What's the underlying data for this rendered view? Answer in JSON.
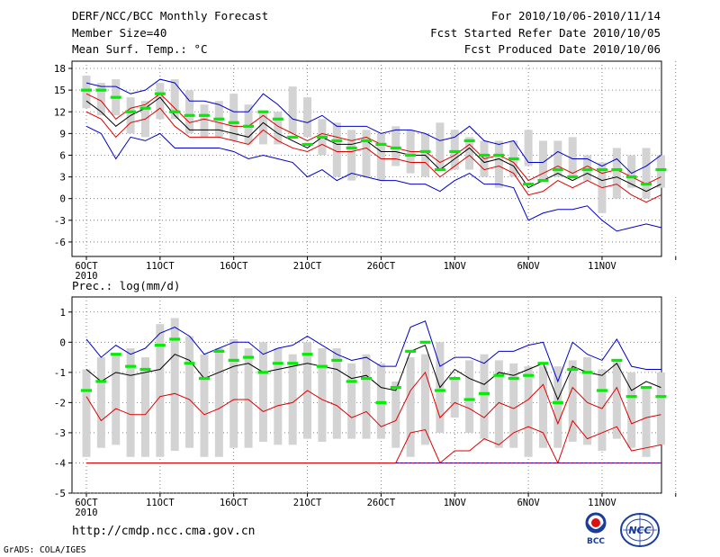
{
  "header": {
    "title": "DERF/NCC/BCC Monthly Forecast",
    "member_size": "Member Size=40",
    "variable": "Mean Surf. Temp.: °C",
    "period": "For 2010/10/06-2010/11/14",
    "fcst_started": "Fcst Started Refer Date 2010/10/05",
    "fcst_produced": "Fcst Produced Date 2010/10/06"
  },
  "footer": {
    "url": "http://cmdp.ncc.cma.gov.cn",
    "grads": "GrADS: COLA/IGES",
    "logo_bcc": "BCC",
    "logo_ncc": "NCC"
  },
  "colors": {
    "box": "#d3d3d3",
    "median": "#00ee00",
    "mean": "#000000",
    "bound_outer": "#0000cc",
    "bound_inner": "#dd0000",
    "grid": "#666666"
  },
  "chart_data": [
    {
      "type": "box_ensemble",
      "title": "Mean Surf. Temp.: °C",
      "xlabel": "",
      "ylabel": "",
      "ylim": [
        -8,
        19
      ],
      "yticks": [
        -6,
        -3,
        0,
        3,
        6,
        9,
        12,
        15,
        18
      ],
      "ytick_labels": [
        "-6",
        "-3",
        "0",
        "3",
        "6",
        "9",
        "12",
        "15",
        "18"
      ],
      "xticks": [
        0,
        5,
        10,
        15,
        20,
        25,
        30,
        35,
        40
      ],
      "xtick_labels": [
        "6OCT",
        "11OCT",
        "16OCT",
        "21OCT",
        "26OCT",
        "1NOV",
        "6NOV",
        "11NOV",
        ""
      ],
      "xtick_sublabel": "2010",
      "days": [
        0,
        1,
        2,
        3,
        4,
        5,
        6,
        7,
        8,
        9,
        10,
        11,
        12,
        13,
        14,
        15,
        16,
        17,
        18,
        19,
        20,
        21,
        22,
        23,
        24,
        25,
        26,
        27,
        28,
        29,
        30,
        31,
        32,
        33,
        34,
        35,
        36,
        37,
        38,
        39
      ],
      "box_low": [
        12.5,
        11.5,
        11.5,
        9,
        8.5,
        11,
        11,
        9,
        8.5,
        8.5,
        8,
        7.5,
        7.5,
        7.5,
        9,
        8.5,
        6,
        3,
        2.5,
        3,
        2.5,
        4.5,
        3.5,
        3,
        4,
        4,
        4,
        3,
        1.5,
        3,
        4.5,
        2.5,
        3,
        3,
        2.5,
        -2,
        0,
        1.5,
        0,
        1.5
      ],
      "box_high": [
        17,
        16,
        16.5,
        14,
        13.5,
        16,
        16.5,
        15,
        13,
        13.5,
        14.5,
        13,
        12,
        12,
        15.5,
        14,
        11,
        10.5,
        9.5,
        9.5,
        9,
        10,
        9.5,
        9,
        10.5,
        9.5,
        8.5,
        8,
        8,
        8,
        9.5,
        8,
        8,
        8.5,
        6,
        5,
        7,
        6,
        7,
        6
      ],
      "median": [
        15,
        15,
        14,
        12,
        12.5,
        14.5,
        12,
        11.5,
        11.5,
        11,
        10.5,
        10,
        12,
        11,
        8.5,
        7.5,
        8.5,
        8,
        7,
        8,
        7.5,
        7,
        6,
        6.5,
        4,
        6.5,
        8,
        6,
        6,
        5.5,
        2,
        2.5,
        4,
        3,
        4,
        4,
        4,
        3,
        2,
        4
      ],
      "mean": [
        13.5,
        12,
        10,
        11.5,
        12.5,
        14,
        11.5,
        9.5,
        9.5,
        9.5,
        9,
        8.5,
        10.5,
        9,
        8,
        7,
        8.5,
        7.5,
        7.5,
        8,
        6.5,
        6.5,
        6,
        6,
        4,
        5.5,
        7,
        5,
        5.5,
        4.5,
        1.5,
        2.5,
        3.5,
        2.5,
        3.5,
        2.5,
        3,
        2,
        1,
        2
      ],
      "max": [
        16,
        15.5,
        15.5,
        14.5,
        15,
        16.5,
        16,
        13.5,
        13.5,
        13,
        12,
        12,
        14.5,
        13,
        11,
        10.5,
        11.5,
        10,
        10,
        10,
        9,
        9.5,
        9.5,
        9,
        8,
        8.5,
        10,
        8,
        7.5,
        8,
        5,
        5,
        6.5,
        5.5,
        5.5,
        4.5,
        5.5,
        3.5,
        4.5,
        6
      ],
      "inner_high": [
        14.5,
        13.5,
        11,
        12.5,
        13,
        14.5,
        12.5,
        10.5,
        11,
        10.5,
        10,
        10,
        11.5,
        10,
        9,
        8,
        9,
        8.5,
        8,
        8.5,
        7.5,
        7,
        6.5,
        6.5,
        5,
        6,
        7.5,
        5.5,
        6,
        5,
        2.5,
        3.5,
        4.5,
        3.5,
        4.5,
        3.5,
        4,
        3,
        2,
        3
      ],
      "inner_low": [
        12,
        11,
        8.5,
        10.5,
        11,
        12.5,
        10,
        8.5,
        8.5,
        8.5,
        8,
        7.5,
        9.5,
        8,
        7,
        6.5,
        7.5,
        6.5,
        6.5,
        7,
        5.5,
        5.5,
        5,
        5,
        3,
        4.5,
        6,
        4,
        4.5,
        3.5,
        0.5,
        1,
        2.5,
        1.5,
        2.5,
        1.5,
        2,
        0.5,
        -0.5,
        0.5
      ],
      "min": [
        10,
        9,
        5.5,
        8.5,
        8,
        9,
        7,
        7,
        7,
        7,
        6.5,
        5.5,
        6,
        5.5,
        5,
        3,
        4,
        2.5,
        3.5,
        3,
        2.5,
        2.5,
        2,
        2,
        1,
        2.5,
        3.5,
        2,
        2,
        1.5,
        -3,
        -2,
        -1.5,
        -1.5,
        -1,
        -3,
        -4.5,
        -4,
        -3.5,
        -4
      ]
    },
    {
      "type": "box_ensemble",
      "title": "Prec.: log(mm/d)",
      "xlabel": "",
      "ylabel": "",
      "ylim": [
        -5,
        1.5
      ],
      "yticks": [
        -5,
        -4,
        -3,
        -2,
        -1,
        0,
        1
      ],
      "ytick_labels": [
        "-5",
        "-4",
        "-3",
        "-2",
        "-1",
        "0",
        "1"
      ],
      "xticks": [
        0,
        5,
        10,
        15,
        20,
        25,
        30,
        35,
        40
      ],
      "xtick_labels": [
        "6OCT",
        "11OCT",
        "16OCT",
        "21OCT",
        "26OCT",
        "1NOV",
        "6NOV",
        "11NOV",
        ""
      ],
      "xtick_sublabel": "2010",
      "days": [
        0,
        1,
        2,
        3,
        4,
        5,
        6,
        7,
        8,
        9,
        10,
        11,
        12,
        13,
        14,
        15,
        16,
        17,
        18,
        19,
        20,
        21,
        22,
        23,
        24,
        25,
        26,
        27,
        28,
        29,
        30,
        31,
        32,
        33,
        34,
        35,
        36,
        37,
        38,
        39
      ],
      "box_low": [
        -3.8,
        -3.5,
        -3.4,
        -3.8,
        -3.8,
        -3.8,
        -3.6,
        -3.5,
        -3.8,
        -3.8,
        -3.5,
        -3.5,
        -3.3,
        -3.4,
        -3.4,
        -3.2,
        -3.3,
        -3.2,
        -3.2,
        -3.2,
        -3.2,
        -3.5,
        -3.8,
        -3.4,
        -3.0,
        -2.5,
        -3.0,
        -3.2,
        -3.5,
        -3.5,
        -3.8,
        -3.5,
        -3.5,
        -3.3,
        -3.4,
        -3.6,
        -3.2,
        -3.5,
        -3.8,
        -3.4
      ],
      "box_high": [
        -0.9,
        -0.5,
        -0.4,
        -0.2,
        -0.5,
        0.6,
        0.8,
        0.2,
        -0.4,
        -0.2,
        0.1,
        -0.2,
        0.0,
        -0.2,
        -0.4,
        0.0,
        -0.2,
        -0.2,
        -0.7,
        -0.4,
        -0.7,
        -1.3,
        -0.5,
        -0.4,
        0.0,
        -1.2,
        -0.6,
        -0.4,
        -0.6,
        -0.7,
        -0.8,
        -0.8,
        -0.8,
        -0.6,
        -0.5,
        -0.9,
        -0.6,
        -1.0,
        -1.5,
        -1.0
      ],
      "median": [
        -1.6,
        -1.3,
        -0.4,
        -0.8,
        -0.9,
        -0.1,
        0.1,
        -0.7,
        -1.2,
        -0.3,
        -0.6,
        -0.5,
        -1.0,
        -0.7,
        -0.7,
        -0.4,
        -0.8,
        -0.6,
        -1.3,
        -1.2,
        -2.0,
        -1.5,
        -0.3,
        0.0,
        -1.6,
        -1.2,
        -1.9,
        -1.7,
        -1.1,
        -1.2,
        -1.1,
        -0.7,
        -2.0,
        -0.9,
        -1.0,
        -1.6,
        -0.6,
        -1.8,
        -1.5,
        -1.8
      ],
      "mean": [
        -0.9,
        -1.3,
        -1.0,
        -1.1,
        -1.0,
        -0.9,
        -0.4,
        -0.6,
        -1.2,
        -1.0,
        -0.8,
        -0.7,
        -1.0,
        -0.9,
        -0.8,
        -0.7,
        -0.8,
        -0.9,
        -1.2,
        -1.1,
        -1.5,
        -1.6,
        -0.3,
        -0.1,
        -1.5,
        -0.9,
        -1.2,
        -1.4,
        -1.0,
        -1.1,
        -0.9,
        -0.7,
        -1.9,
        -0.8,
        -1.0,
        -1.1,
        -0.7,
        -1.6,
        -1.3,
        -1.5
      ],
      "max": [
        0.1,
        -0.5,
        -0.1,
        -0.4,
        -0.2,
        0.3,
        0.5,
        0.2,
        -0.4,
        -0.2,
        0.0,
        0.0,
        -0.4,
        -0.2,
        -0.1,
        0.2,
        -0.1,
        -0.4,
        -0.6,
        -0.5,
        -0.8,
        -0.8,
        0.5,
        0.7,
        -0.8,
        -0.5,
        -0.5,
        -0.7,
        -0.3,
        -0.3,
        -0.1,
        0.0,
        -1.3,
        0.0,
        -0.4,
        -0.6,
        0.1,
        -0.8,
        -0.9,
        -0.9
      ],
      "inner_high": [
        -1.8,
        -2.6,
        -2.2,
        -2.4,
        -2.4,
        -1.8,
        -1.7,
        -1.9,
        -2.4,
        -2.2,
        -1.9,
        -1.9,
        -2.3,
        -2.1,
        -2.0,
        -1.6,
        -1.9,
        -2.1,
        -2.5,
        -2.3,
        -2.8,
        -2.6,
        -1.6,
        -1.0,
        -2.5,
        -2.0,
        -2.2,
        -2.5,
        -2.0,
        -2.2,
        -1.9,
        -1.4,
        -2.7,
        -1.5,
        -2.0,
        -2.2,
        -1.5,
        -2.7,
        -2.5,
        -2.4
      ],
      "inner_low": [
        -4,
        -4,
        -4,
        -4,
        -4,
        -4,
        -4,
        -4,
        -4,
        -4,
        -4,
        -4,
        -4,
        -4,
        -4,
        -4,
        -4,
        -4,
        -4,
        -4,
        -4,
        -4,
        -3.0,
        -2.9,
        -4,
        -3.6,
        -3.6,
        -3.2,
        -3.4,
        -3.0,
        -2.8,
        -3.0,
        -4,
        -2.6,
        -3.2,
        -3.0,
        -2.8,
        -3.6,
        -3.5,
        -3.4
      ],
      "min": [
        -4,
        -4,
        -4,
        -4,
        -4,
        -4,
        -4,
        -4,
        -4,
        -4,
        -4,
        -4,
        -4,
        -4,
        -4,
        -4,
        -4,
        -4,
        -4,
        -4,
        -4,
        -4,
        -4,
        -4,
        -4,
        -4,
        -4,
        -4,
        -4,
        -4,
        -4,
        -4,
        -4,
        -4,
        -4,
        -4,
        -4,
        -4,
        -4,
        -4
      ]
    }
  ]
}
